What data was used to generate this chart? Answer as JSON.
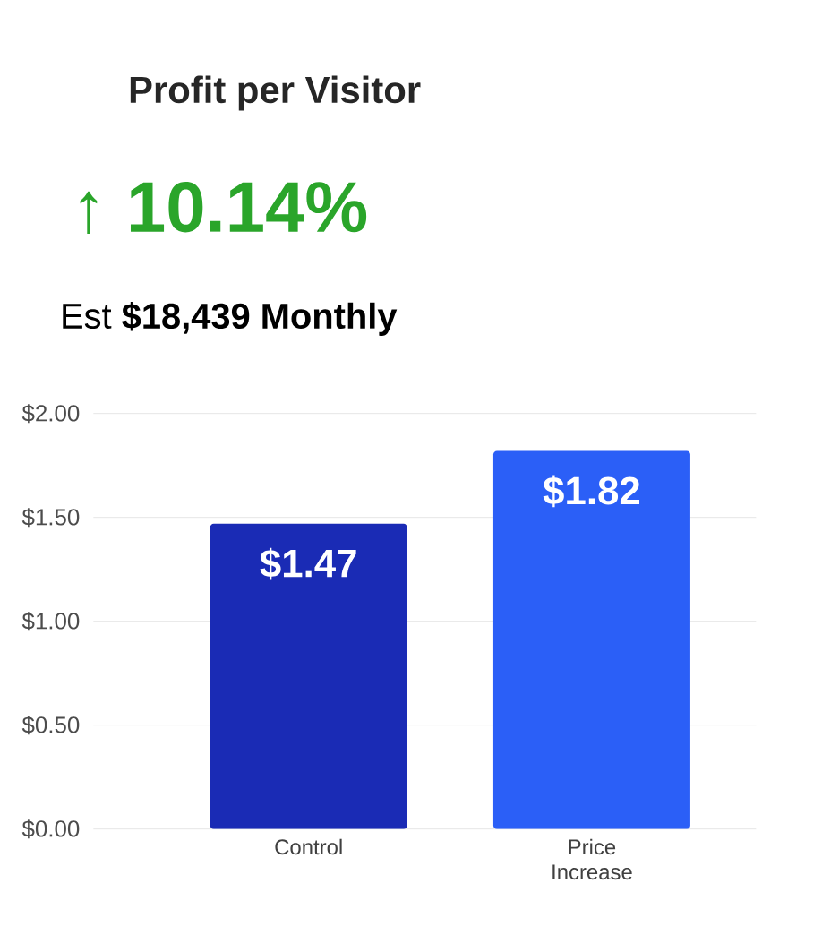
{
  "chart_data": {
    "type": "bar",
    "title": "Profit per Visitor",
    "subtitle": "↑ 10.14%",
    "annotations": [
      "Est **$18,439 Monthly**"
    ],
    "categories": [
      "Control",
      "Price Increase"
    ],
    "values": [
      1.47,
      1.82
    ],
    "colors": [
      "#1a2bb5",
      "#2b5ff7"
    ],
    "value_labels": [
      "$1.47",
      "$1.82"
    ],
    "ylim": [
      0,
      2
    ],
    "yticks": [
      {
        "value": 0,
        "label": "$0.00"
      },
      {
        "value": 0.5,
        "label": "$0.50"
      },
      {
        "value": 1,
        "label": "$1.00"
      },
      {
        "value": 1.5,
        "label": "$1.50"
      },
      {
        "value": 2,
        "label": "$2.00"
      }
    ],
    "grid": "y"
  }
}
